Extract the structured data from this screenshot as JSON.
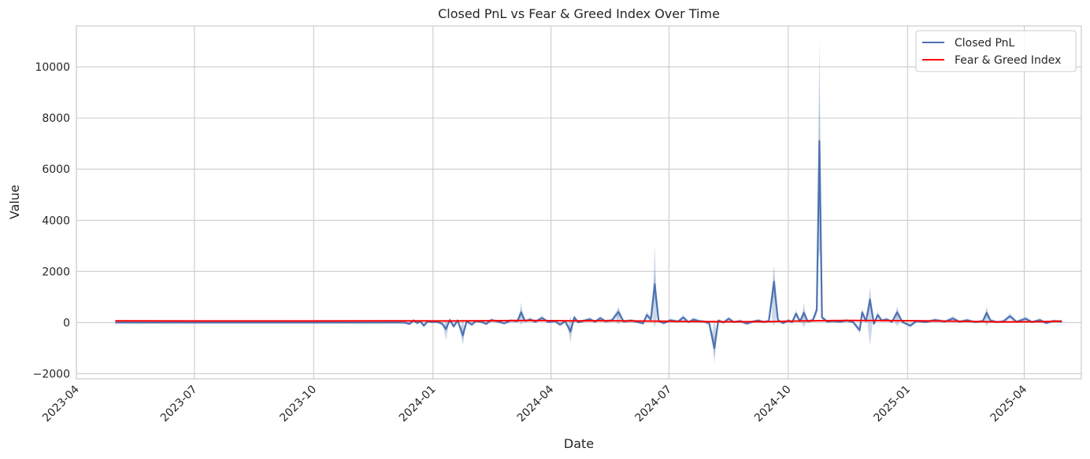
{
  "chart_data": {
    "type": "line",
    "title": "Closed PnL vs Fear & Greed Index Over Time",
    "xlabel": "Date",
    "ylabel": "Value",
    "xlim": [
      "2023-04-01",
      "2025-05-15"
    ],
    "ylim": [
      -2200,
      11600
    ],
    "x_ticks": [
      "2023-04",
      "2023-07",
      "2023-10",
      "2024-01",
      "2024-04",
      "2024-07",
      "2024-10",
      "2025-01",
      "2025-04"
    ],
    "x_tick_dates": [
      "2023-04-01",
      "2023-07-01",
      "2023-10-01",
      "2024-01-01",
      "2024-04-01",
      "2024-07-01",
      "2024-10-01",
      "2025-01-01",
      "2025-04-01"
    ],
    "y_ticks": [
      -2000,
      0,
      2000,
      4000,
      6000,
      8000,
      10000
    ],
    "grid": true,
    "legend_position": "top-right",
    "series": [
      {
        "name": "Closed PnL",
        "color": "#4c72b0",
        "band_color": "#4c72b0",
        "points": [
          [
            "2023-05-01",
            0
          ],
          [
            "2023-12-10",
            0
          ],
          [
            "2023-12-14",
            -50
          ],
          [
            "2023-12-17",
            80
          ],
          [
            "2023-12-20",
            -20
          ],
          [
            "2023-12-22",
            60
          ],
          [
            "2023-12-25",
            -120
          ],
          [
            "2023-12-28",
            50
          ],
          [
            "2023-12-31",
            20
          ],
          [
            "2024-01-04",
            30
          ],
          [
            "2024-01-08",
            -40
          ],
          [
            "2024-01-11",
            -250
          ],
          [
            "2024-01-14",
            100
          ],
          [
            "2024-01-17",
            -150
          ],
          [
            "2024-01-20",
            80
          ],
          [
            "2024-01-24",
            -500
          ],
          [
            "2024-01-27",
            50
          ],
          [
            "2024-01-31",
            -80
          ],
          [
            "2024-02-03",
            60
          ],
          [
            "2024-02-07",
            30
          ],
          [
            "2024-02-11",
            -50
          ],
          [
            "2024-02-15",
            100
          ],
          [
            "2024-02-20",
            40
          ],
          [
            "2024-02-25",
            -30
          ],
          [
            "2024-03-01",
            80
          ],
          [
            "2024-03-06",
            50
          ],
          [
            "2024-03-09",
            400
          ],
          [
            "2024-03-12",
            60
          ],
          [
            "2024-03-16",
            120
          ],
          [
            "2024-03-20",
            30
          ],
          [
            "2024-03-25",
            180
          ],
          [
            "2024-03-30",
            20
          ],
          [
            "2024-04-04",
            60
          ],
          [
            "2024-04-08",
            -80
          ],
          [
            "2024-04-12",
            50
          ],
          [
            "2024-04-16",
            -350
          ],
          [
            "2024-04-19",
            200
          ],
          [
            "2024-04-22",
            10
          ],
          [
            "2024-04-27",
            80
          ],
          [
            "2024-05-01",
            130
          ],
          [
            "2024-05-05",
            30
          ],
          [
            "2024-05-09",
            170
          ],
          [
            "2024-05-13",
            50
          ],
          [
            "2024-05-18",
            90
          ],
          [
            "2024-05-23",
            420
          ],
          [
            "2024-05-27",
            40
          ],
          [
            "2024-06-02",
            80
          ],
          [
            "2024-06-07",
            20
          ],
          [
            "2024-06-11",
            -30
          ],
          [
            "2024-06-14",
            300
          ],
          [
            "2024-06-17",
            120
          ],
          [
            "2024-06-20",
            1500
          ],
          [
            "2024-06-23",
            60
          ],
          [
            "2024-06-27",
            -20
          ],
          [
            "2024-07-02",
            90
          ],
          [
            "2024-07-08",
            40
          ],
          [
            "2024-07-12",
            200
          ],
          [
            "2024-07-16",
            20
          ],
          [
            "2024-07-20",
            120
          ],
          [
            "2024-07-24",
            60
          ],
          [
            "2024-07-28",
            40
          ],
          [
            "2024-08-01",
            -30
          ],
          [
            "2024-08-05",
            -1000
          ],
          [
            "2024-08-08",
            80
          ],
          [
            "2024-08-12",
            0
          ],
          [
            "2024-08-16",
            150
          ],
          [
            "2024-08-20",
            20
          ],
          [
            "2024-08-25",
            60
          ],
          [
            "2024-08-30",
            -40
          ],
          [
            "2024-09-04",
            40
          ],
          [
            "2024-09-08",
            80
          ],
          [
            "2024-09-12",
            20
          ],
          [
            "2024-09-16",
            60
          ],
          [
            "2024-09-20",
            1600
          ],
          [
            "2024-09-23",
            100
          ],
          [
            "2024-09-27",
            -20
          ],
          [
            "2024-10-01",
            80
          ],
          [
            "2024-10-04",
            20
          ],
          [
            "2024-10-07",
            350
          ],
          [
            "2024-10-10",
            50
          ],
          [
            "2024-10-13",
            380
          ],
          [
            "2024-10-16",
            40
          ],
          [
            "2024-10-20",
            100
          ],
          [
            "2024-10-23",
            500
          ],
          [
            "2024-10-25",
            7100
          ],
          [
            "2024-10-27",
            200
          ],
          [
            "2024-10-31",
            40
          ],
          [
            "2024-11-05",
            60
          ],
          [
            "2024-11-10",
            30
          ],
          [
            "2024-11-15",
            80
          ],
          [
            "2024-11-20",
            20
          ],
          [
            "2024-11-25",
            -300
          ],
          [
            "2024-11-27",
            400
          ],
          [
            "2024-11-30",
            50
          ],
          [
            "2024-12-03",
            900
          ],
          [
            "2024-12-06",
            -50
          ],
          [
            "2024-12-09",
            300
          ],
          [
            "2024-12-12",
            80
          ],
          [
            "2024-12-16",
            120
          ],
          [
            "2024-12-20",
            30
          ],
          [
            "2024-12-24",
            400
          ],
          [
            "2024-12-28",
            20
          ],
          [
            "2025-01-03",
            -120
          ],
          [
            "2025-01-08",
            60
          ],
          [
            "2025-01-15",
            20
          ],
          [
            "2025-01-22",
            100
          ],
          [
            "2025-01-30",
            40
          ],
          [
            "2025-02-05",
            160
          ],
          [
            "2025-02-10",
            30
          ],
          [
            "2025-02-16",
            90
          ],
          [
            "2025-02-22",
            20
          ],
          [
            "2025-02-28",
            60
          ],
          [
            "2025-03-03",
            380
          ],
          [
            "2025-03-06",
            80
          ],
          [
            "2025-03-11",
            20
          ],
          [
            "2025-03-16",
            50
          ],
          [
            "2025-03-21",
            250
          ],
          [
            "2025-03-26",
            30
          ],
          [
            "2025-04-02",
            150
          ],
          [
            "2025-04-07",
            20
          ],
          [
            "2025-04-13",
            100
          ],
          [
            "2025-04-18",
            -20
          ],
          [
            "2025-04-23",
            60
          ],
          [
            "2025-04-30",
            40
          ]
        ],
        "band_spikes": [
          [
            "2024-01-11",
            -700,
            120
          ],
          [
            "2024-01-24",
            -900,
            150
          ],
          [
            "2024-03-09",
            -100,
            800
          ],
          [
            "2024-04-16",
            -800,
            280
          ],
          [
            "2024-05-23",
            -80,
            600
          ],
          [
            "2024-06-20",
            -200,
            3050
          ],
          [
            "2024-08-05",
            -1600,
            120
          ],
          [
            "2024-09-20",
            -150,
            2250
          ],
          [
            "2024-10-13",
            -200,
            800
          ],
          [
            "2024-10-25",
            2800,
            11050
          ],
          [
            "2024-12-03",
            -900,
            1450
          ],
          [
            "2024-12-24",
            -150,
            650
          ],
          [
            "2025-03-03",
            -150,
            650
          ]
        ]
      },
      {
        "name": "Fear & Greed Index",
        "color": "#ff0000",
        "points": [
          [
            "2023-05-01",
            65
          ],
          [
            "2023-09-01",
            62
          ],
          [
            "2023-12-01",
            68
          ],
          [
            "2024-01-15",
            62
          ],
          [
            "2024-02-15",
            70
          ],
          [
            "2024-03-15",
            82
          ],
          [
            "2024-04-15",
            68
          ],
          [
            "2024-05-15",
            72
          ],
          [
            "2024-06-15",
            60
          ],
          [
            "2024-07-15",
            45
          ],
          [
            "2024-08-15",
            30
          ],
          [
            "2024-09-15",
            35
          ],
          [
            "2024-10-15",
            68
          ],
          [
            "2024-11-15",
            85
          ],
          [
            "2024-12-15",
            78
          ],
          [
            "2025-01-15",
            65
          ],
          [
            "2025-02-15",
            48
          ],
          [
            "2025-03-15",
            25
          ],
          [
            "2025-04-15",
            35
          ],
          [
            "2025-04-30",
            55
          ]
        ]
      }
    ]
  }
}
